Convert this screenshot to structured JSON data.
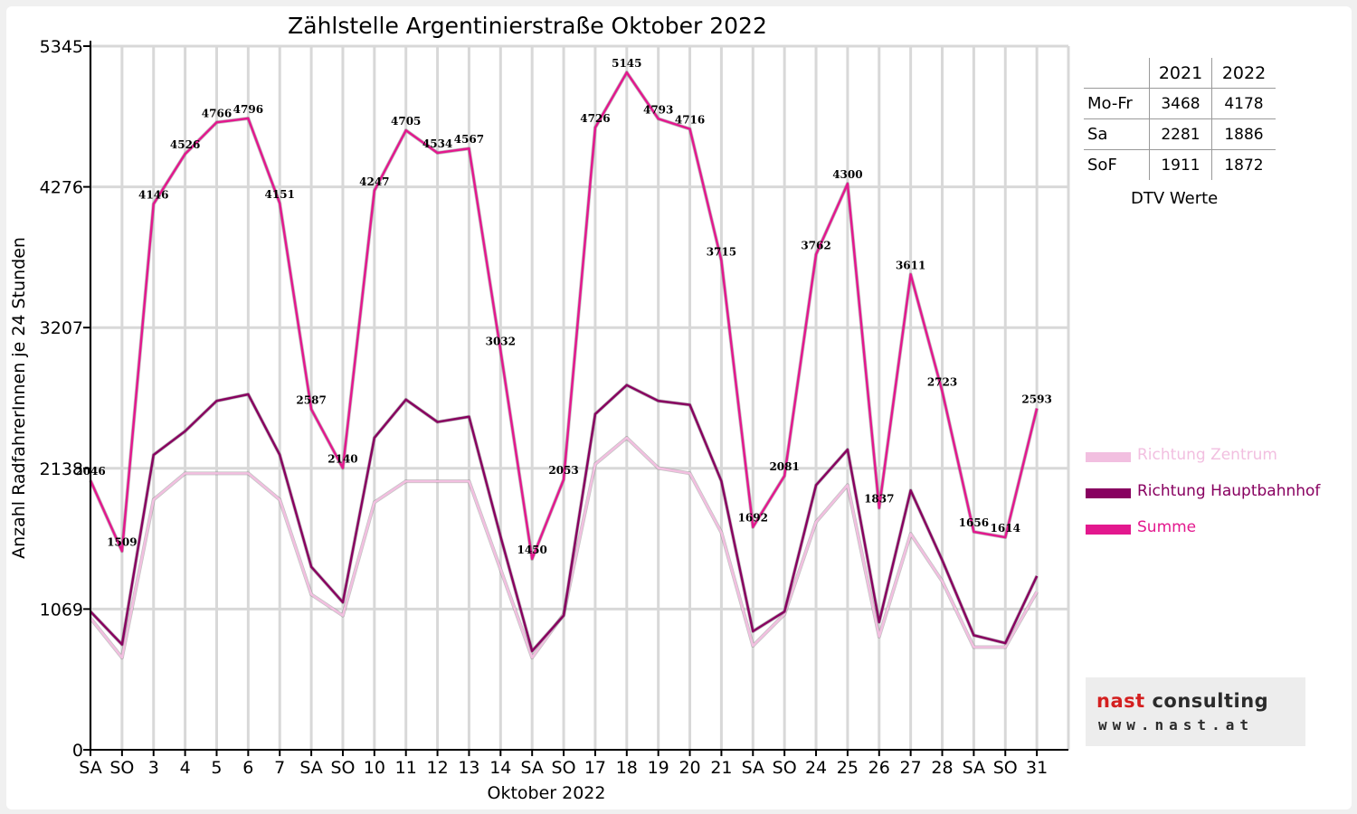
{
  "chart_data": {
    "type": "line",
    "title": "Zählstelle Argentinierstraße Oktober 2022",
    "xlabel": "Oktober 2022",
    "ylabel": "Anzahl RadfahrerInnen je 24 Stunden",
    "yticks": [
      0,
      1069,
      2138,
      3207,
      4276,
      5345
    ],
    "ylim": [
      0,
      5345
    ],
    "grid": true,
    "legend_position": "right",
    "categories": [
      "SA",
      "SO",
      "3",
      "4",
      "5",
      "6",
      "7",
      "SA",
      "SO",
      "10",
      "11",
      "12",
      "13",
      "14",
      "SA",
      "SO",
      "17",
      "18",
      "19",
      "20",
      "21",
      "SA",
      "SO",
      "24",
      "25",
      "26",
      "27",
      "28",
      "SA",
      "SO",
      "31"
    ],
    "category_colors": [
      "#000000",
      "#e00000",
      "#000000",
      "#000000",
      "#000000",
      "#000000",
      "#000000",
      "#000000",
      "#e00000",
      "#000000",
      "#000000",
      "#000000",
      "#000000",
      "#000000",
      "#000000",
      "#e00000",
      "#000000",
      "#000000",
      "#000000",
      "#000000",
      "#000000",
      "#000000",
      "#e00000",
      "#000000",
      "#000000",
      "#e00000",
      "#000000",
      "#000000",
      "#000000",
      "#e00000",
      "#000000"
    ],
    "series": [
      {
        "name": "Richtung Zentrum",
        "color": "#f2bfe0",
        "values": [
          1000,
          700,
          1900,
          2100,
          2100,
          2100,
          1900,
          1180,
          1020,
          1880,
          2040,
          2040,
          2040,
          1370,
          700,
          1030,
          2170,
          2370,
          2140,
          2100,
          1650,
          790,
          1030,
          1730,
          2010,
          860,
          1640,
          1280,
          780,
          780,
          1200
        ]
      },
      {
        "name": "Richtung Hauptbahnhof",
        "color": "#880060",
        "values": [
          1050,
          800,
          2240,
          2420,
          2650,
          2700,
          2240,
          1390,
          1120,
          2370,
          2660,
          2490,
          2530,
          1620,
          750,
          1020,
          2550,
          2770,
          2650,
          2620,
          2040,
          900,
          1050,
          2010,
          2280,
          970,
          1970,
          1440,
          870,
          810,
          1320
        ]
      },
      {
        "name": "Summe",
        "color": "#e3188e",
        "values": [
          2046,
          1509,
          4146,
          4526,
          4766,
          4796,
          4151,
          2587,
          2140,
          4247,
          4705,
          4534,
          4567,
          3032,
          1450,
          2053,
          4726,
          5145,
          4793,
          4716,
          3715,
          1692,
          2081,
          3762,
          4300,
          1837,
          3611,
          2723,
          1656,
          1614,
          2593
        ]
      }
    ],
    "data_labels": [
      2046,
      1509,
      4146,
      4526,
      4766,
      4796,
      4151,
      2587,
      2140,
      4247,
      4705,
      4534,
      4567,
      3032,
      1450,
      2053,
      4726,
      5145,
      4793,
      4716,
      3715,
      1692,
      2081,
      3762,
      4300,
      1837,
      3611,
      2723,
      1656,
      1614,
      2593
    ]
  },
  "dtv_table": {
    "headers": [
      "",
      "2021",
      "2022"
    ],
    "rows": [
      {
        "label": "Mo-Fr",
        "v2021": "3468",
        "v2022": "4178"
      },
      {
        "label": "Sa",
        "v2021": "2281",
        "v2022": "1886"
      },
      {
        "label": "SoF",
        "v2021": "1911",
        "v2022": "1872"
      }
    ],
    "caption": "DTV Werte"
  },
  "logo": {
    "name_part1": "nast",
    "name_part2": " consulting",
    "url": "www.nast.at"
  }
}
